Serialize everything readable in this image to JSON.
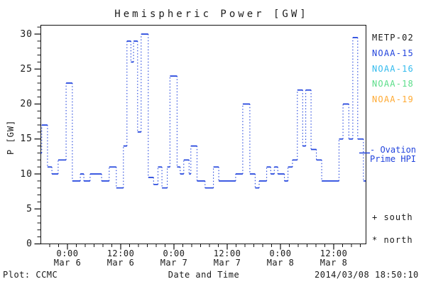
{
  "title": "Hemispheric Power [GW]",
  "ylabel": "P [GW]",
  "colors": {
    "background": "#ffffff",
    "axis": "#111111",
    "text": "#1a1a1a",
    "line_blue": "#2244dd",
    "noaa16_cyan": "#33bbee",
    "noaa18_green": "#5add88",
    "noaa19_orange": "#ffaa33"
  },
  "legend": {
    "items": [
      {
        "label": "METP-02",
        "color": "#1a1a1a"
      },
      {
        "label": "NOAA-15",
        "color": "#2244dd"
      },
      {
        "label": "NOAA-16",
        "color": "#33bbee"
      },
      {
        "label": "NOAA-18",
        "color": "#5add88"
      },
      {
        "label": "NOAA-19",
        "color": "#ffaa33"
      }
    ]
  },
  "ovation": {
    "label_line1": "- Ovation",
    "label_line2": "Prime HPI",
    "marker_value_gw": 13,
    "color": "#2244dd"
  },
  "hemisphere_markers": {
    "south": "+ south",
    "north": "* north"
  },
  "footer": {
    "credit": "Plot: CCMC",
    "xaxis_label": "Date and Time",
    "timestamp": "2014/03/08 18:50:10"
  },
  "chart_data": {
    "type": "line",
    "subtype": "steps",
    "title": "Hemispheric Power [GW]",
    "xlabel": "Date and Time",
    "ylabel": "P [GW]",
    "ylim": [
      0,
      31.2
    ],
    "y_major_ticks": [
      0,
      5,
      10,
      15,
      20,
      25,
      30
    ],
    "y_minor_step_gw": 1,
    "x_axis": {
      "start": "2014-03-05 18:00",
      "end": "2014-03-08 19:12",
      "units_of_points": "hours since 2014-03-05 18:00",
      "minor_tick_step_hours": 2
    },
    "x_ticks": [
      {
        "hour": 6,
        "time": "0:00",
        "date": "Mar 6"
      },
      {
        "hour": 18,
        "time": "12:00",
        "date": "Mar 6"
      },
      {
        "hour": 30,
        "time": "0:00",
        "date": "Mar 7"
      },
      {
        "hour": 42,
        "time": "12:00",
        "date": "Mar 7"
      },
      {
        "hour": 54,
        "time": "0:00",
        "date": "Mar 8"
      },
      {
        "hour": 66,
        "time": "12:00",
        "date": "Mar 8"
      }
    ],
    "grid": false,
    "legend_position": "right-outside",
    "series": [
      {
        "name": "NOAA-15 hemispheric power",
        "color": "#2244dd",
        "style": "solid horizontals with dotted vertical connectors",
        "end_hour": 73.2,
        "points": [
          [
            0.0,
            13
          ],
          [
            0.2,
            17
          ],
          [
            1.5,
            11
          ],
          [
            2.5,
            10
          ],
          [
            3.9,
            12
          ],
          [
            5.7,
            23
          ],
          [
            7.1,
            9
          ],
          [
            8.9,
            10
          ],
          [
            9.7,
            9
          ],
          [
            11.1,
            10
          ],
          [
            13.7,
            9
          ],
          [
            15.4,
            11
          ],
          [
            17.0,
            8
          ],
          [
            18.6,
            14
          ],
          [
            19.4,
            29
          ],
          [
            20.3,
            26
          ],
          [
            20.9,
            29
          ],
          [
            21.8,
            16
          ],
          [
            22.6,
            30
          ],
          [
            24.2,
            9.5
          ],
          [
            25.4,
            8.5
          ],
          [
            26.4,
            11
          ],
          [
            27.3,
            8
          ],
          [
            28.5,
            11
          ],
          [
            29.1,
            24
          ],
          [
            30.7,
            11
          ],
          [
            31.4,
            10
          ],
          [
            32.2,
            12
          ],
          [
            33.4,
            10
          ],
          [
            33.8,
            14
          ],
          [
            35.2,
            9
          ],
          [
            37.0,
            8
          ],
          [
            38.9,
            11
          ],
          [
            40.1,
            9
          ],
          [
            43.9,
            10
          ],
          [
            45.5,
            20
          ],
          [
            47.1,
            10
          ],
          [
            48.3,
            8
          ],
          [
            49.2,
            9
          ],
          [
            50.9,
            11
          ],
          [
            51.8,
            10
          ],
          [
            52.6,
            11
          ],
          [
            53.4,
            10
          ],
          [
            54.9,
            9
          ],
          [
            55.7,
            11
          ],
          [
            56.7,
            12
          ],
          [
            57.8,
            22
          ],
          [
            59.0,
            14
          ],
          [
            59.7,
            22
          ],
          [
            60.9,
            13.5
          ],
          [
            62.1,
            12
          ],
          [
            63.3,
            9
          ],
          [
            67.2,
            15
          ],
          [
            68.1,
            20
          ],
          [
            69.4,
            15
          ],
          [
            70.3,
            29.5
          ],
          [
            71.4,
            15
          ],
          [
            72.7,
            9
          ]
        ]
      }
    ],
    "ovation_prime_hpi_marker_gw": 13
  }
}
